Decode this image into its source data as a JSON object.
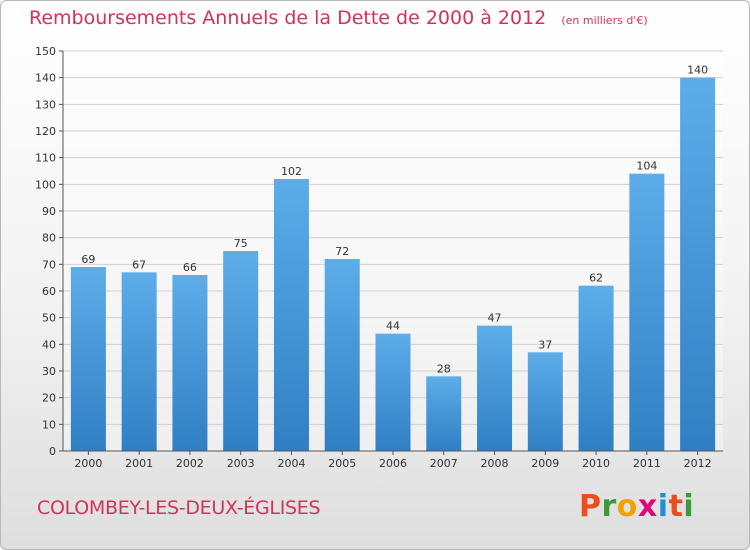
{
  "header": {
    "title": "Remboursements Annuels de la Dette de 2000 à 2012",
    "subtitle": "(en milliers d'€)"
  },
  "footer": {
    "commune": "COLOMBEY-LES-DEUX-ÉGLISES",
    "logo": [
      "P",
      "r",
      "o",
      "x",
      "i",
      "t",
      "i"
    ]
  },
  "colors": {
    "title": "#d2335a",
    "bar_light": "#5dadea",
    "bar_dark": "#2f7fc4",
    "logo": [
      "#e94e1b",
      "#3d9a3a",
      "#f2a100",
      "#e5007d",
      "#1f8fd6",
      "#e94e1b",
      "#3d9a3a"
    ]
  },
  "chart_data": {
    "type": "bar",
    "title": "Remboursements Annuels de la Dette de 2000 à 2012",
    "categories": [
      "2000",
      "2001",
      "2002",
      "2003",
      "2004",
      "2005",
      "2006",
      "2007",
      "2008",
      "2009",
      "2010",
      "2011",
      "2012"
    ],
    "values": [
      69,
      67,
      66,
      75,
      102,
      72,
      44,
      28,
      47,
      37,
      62,
      104,
      140
    ],
    "ylim": [
      0,
      150
    ],
    "yticks": [
      0,
      10,
      20,
      30,
      40,
      50,
      60,
      70,
      80,
      90,
      100,
      110,
      120,
      130,
      140,
      150
    ],
    "grid": true,
    "data_labels": true
  }
}
